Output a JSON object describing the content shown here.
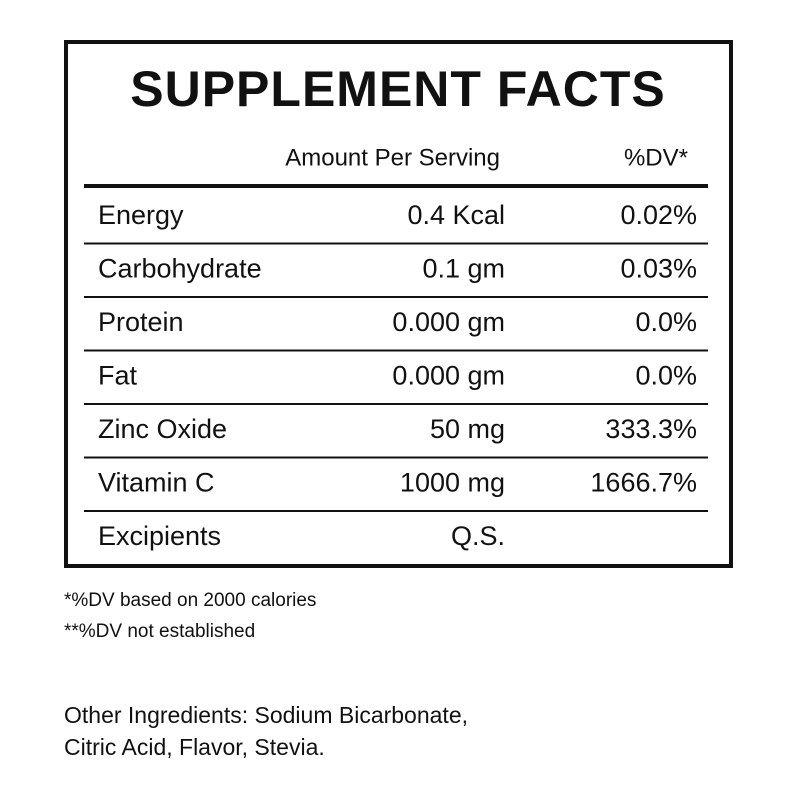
{
  "title": "SUPPLEMENT FACTS",
  "table": {
    "header": [
      "Amount Per Serving",
      "%DV*"
    ],
    "rows": [
      [
        "Energy",
        "0.4 Kcal",
        "0.02%"
      ],
      [
        "Carbohydrate",
        "0.1 gm",
        "0.03%"
      ],
      [
        "Protein",
        "0.000 gm",
        "0.0%"
      ],
      [
        "Fat",
        "0.000 gm",
        "0.0%"
      ],
      [
        "Zinc Oxide",
        "50 mg",
        "333.3%"
      ],
      [
        "Vitamin C",
        "1000 mg",
        "1666.7%"
      ],
      [
        "Excipients",
        "Q.S."
      ]
    ]
  },
  "footnotes": [
    "*%DV based on 2000 calories",
    "**%DV not established"
  ],
  "other_ingredients": [
    "Other Ingredients: Sodium Bicarbonate,",
    "Citric Acid, Flavor, Stevia."
  ]
}
